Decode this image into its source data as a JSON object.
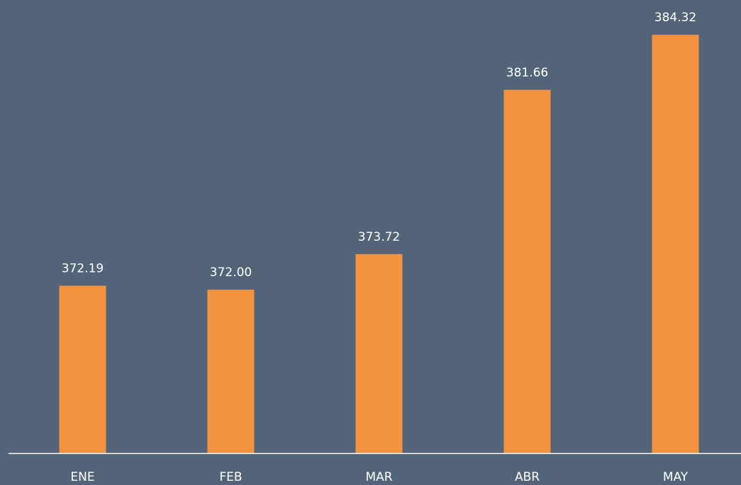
{
  "chart_data": {
    "type": "bar",
    "categories": [
      "ENE",
      "FEB",
      "MAR",
      "ABR",
      "MAY"
    ],
    "values": [
      372.19,
      372,
      373.72,
      381.66,
      384.32
    ],
    "value_labels": [
      "372.19",
      "372.00",
      "373.72",
      "381.66",
      "384.32"
    ],
    "color": "#f39340",
    "ylim": [
      364.1,
      386
    ]
  }
}
